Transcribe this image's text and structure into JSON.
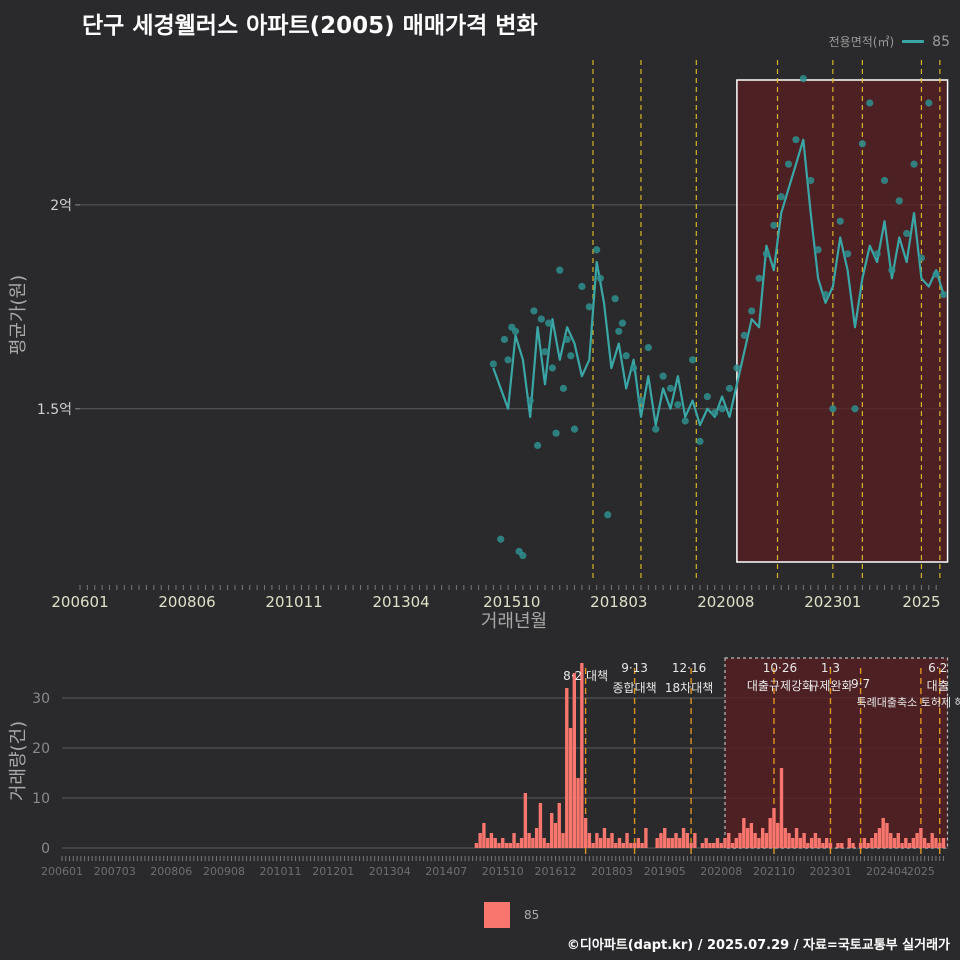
{
  "title": "단구 세경웰러스 아파트(2005) 매매가격 변화",
  "legend": {
    "title": "전용면적(㎡)",
    "item": "85"
  },
  "bottom_legend": {
    "item": "85"
  },
  "credit": "©디아파트(dapt.kr) / 2025.07.29 / 자료=국토교통부 실거래가",
  "colors": {
    "background": "#2a2a2c",
    "series_line": "#3aa6a6",
    "point": "#2f8f8f",
    "bar": "#f8766d",
    "highlight": "#5a1e22",
    "policy_line": "#e8c32a"
  },
  "chart_data": [
    {
      "type": "scatter",
      "title": "단구 세경웰러스 아파트(2005) 매매가격 변화",
      "xlabel": "거래년월",
      "ylabel": "평균가(원)",
      "x_ticks": [
        "200601",
        "200806",
        "201011",
        "201304",
        "201510",
        "201803",
        "202008",
        "202301",
        "2025"
      ],
      "y_ticks": [
        "1.5억",
        "2억"
      ],
      "ylim": [
        1.08,
        2.38
      ],
      "series_name": "85",
      "trend": [
        [
          "2015-05",
          1.6
        ],
        [
          "2015-07",
          1.55
        ],
        [
          "2015-09",
          1.5
        ],
        [
          "2015-11",
          1.68
        ],
        [
          "2016-01",
          1.62
        ],
        [
          "2016-03",
          1.48
        ],
        [
          "2016-05",
          1.7
        ],
        [
          "2016-07",
          1.56
        ],
        [
          "2016-09",
          1.72
        ],
        [
          "2016-11",
          1.62
        ],
        [
          "2017-01",
          1.7
        ],
        [
          "2017-03",
          1.66
        ],
        [
          "2017-05",
          1.58
        ],
        [
          "2017-07",
          1.62
        ],
        [
          "2017-09",
          1.86
        ],
        [
          "2017-11",
          1.76
        ],
        [
          "2018-01",
          1.6
        ],
        [
          "2018-03",
          1.66
        ],
        [
          "2018-05",
          1.55
        ],
        [
          "2018-07",
          1.62
        ],
        [
          "2018-09",
          1.48
        ],
        [
          "2018-11",
          1.58
        ],
        [
          "2019-01",
          1.46
        ],
        [
          "2019-03",
          1.55
        ],
        [
          "2019-05",
          1.5
        ],
        [
          "2019-07",
          1.58
        ],
        [
          "2019-09",
          1.48
        ],
        [
          "2019-11",
          1.52
        ],
        [
          "2020-01",
          1.46
        ],
        [
          "2020-03",
          1.5
        ],
        [
          "2020-05",
          1.48
        ],
        [
          "2020-07",
          1.53
        ],
        [
          "2020-09",
          1.48
        ],
        [
          "2020-11",
          1.56
        ],
        [
          "2021-01",
          1.64
        ],
        [
          "2021-03",
          1.72
        ],
        [
          "2021-05",
          1.7
        ],
        [
          "2021-07",
          1.9
        ],
        [
          "2021-09",
          1.84
        ],
        [
          "2021-11",
          1.98
        ],
        [
          "2022-01",
          2.04
        ],
        [
          "2022-03",
          2.1
        ],
        [
          "2022-05",
          2.16
        ],
        [
          "2022-07",
          1.98
        ],
        [
          "2022-09",
          1.82
        ],
        [
          "2022-11",
          1.76
        ],
        [
          "2023-01",
          1.8
        ],
        [
          "2023-03",
          1.92
        ],
        [
          "2023-05",
          1.84
        ],
        [
          "2023-07",
          1.7
        ],
        [
          "2023-09",
          1.82
        ],
        [
          "2023-11",
          1.9
        ],
        [
          "2024-01",
          1.86
        ],
        [
          "2024-03",
          1.96
        ],
        [
          "2024-05",
          1.82
        ],
        [
          "2024-07",
          1.92
        ],
        [
          "2024-09",
          1.86
        ],
        [
          "2024-11",
          1.98
        ],
        [
          "2025-01",
          1.82
        ],
        [
          "2025-03",
          1.8
        ],
        [
          "2025-05",
          1.84
        ],
        [
          "2025-07",
          1.78
        ]
      ],
      "points": [
        [
          "2015-05",
          1.61
        ],
        [
          "2015-07",
          1.18
        ],
        [
          "2015-08",
          1.67
        ],
        [
          "2015-09",
          1.62
        ],
        [
          "2015-10",
          1.7
        ],
        [
          "2015-11",
          1.69
        ],
        [
          "2015-12",
          1.15
        ],
        [
          "2016-01",
          1.14
        ],
        [
          "2016-03",
          1.52
        ],
        [
          "2016-04",
          1.74
        ],
        [
          "2016-05",
          1.41
        ],
        [
          "2016-06",
          1.72
        ],
        [
          "2016-07",
          1.64
        ],
        [
          "2016-08",
          1.71
        ],
        [
          "2016-09",
          1.6
        ],
        [
          "2016-10",
          1.44
        ],
        [
          "2016-11",
          1.84
        ],
        [
          "2016-12",
          1.55
        ],
        [
          "2017-01",
          1.67
        ],
        [
          "2017-02",
          1.63
        ],
        [
          "2017-03",
          1.45
        ],
        [
          "2017-05",
          1.8
        ],
        [
          "2017-07",
          1.75
        ],
        [
          "2017-09",
          1.89
        ],
        [
          "2017-10",
          1.82
        ],
        [
          "2017-12",
          1.24
        ],
        [
          "2018-02",
          1.77
        ],
        [
          "2018-03",
          1.69
        ],
        [
          "2018-04",
          1.71
        ],
        [
          "2018-05",
          1.63
        ],
        [
          "2018-07",
          1.6
        ],
        [
          "2018-09",
          1.52
        ],
        [
          "2018-11",
          1.65
        ],
        [
          "2019-01",
          1.45
        ],
        [
          "2019-03",
          1.58
        ],
        [
          "2019-05",
          1.55
        ],
        [
          "2019-07",
          1.51
        ],
        [
          "2019-09",
          1.47
        ],
        [
          "2019-11",
          1.62
        ],
        [
          "2020-01",
          1.42
        ],
        [
          "2020-03",
          1.53
        ],
        [
          "2020-05",
          1.49
        ],
        [
          "2020-07",
          1.5
        ],
        [
          "2020-09",
          1.55
        ],
        [
          "2020-11",
          1.6
        ],
        [
          "2021-01",
          1.68
        ],
        [
          "2021-03",
          1.74
        ],
        [
          "2021-05",
          1.82
        ],
        [
          "2021-07",
          1.88
        ],
        [
          "2021-09",
          1.95
        ],
        [
          "2021-11",
          2.02
        ],
        [
          "2022-01",
          2.1
        ],
        [
          "2022-03",
          2.16
        ],
        [
          "2022-05",
          2.31
        ],
        [
          "2022-07",
          2.06
        ],
        [
          "2022-09",
          1.89
        ],
        [
          "2022-11",
          1.78
        ],
        [
          "2023-01",
          1.5
        ],
        [
          "2023-03",
          1.96
        ],
        [
          "2023-05",
          1.88
        ],
        [
          "2023-07",
          1.5
        ],
        [
          "2023-09",
          2.15
        ],
        [
          "2023-11",
          2.25
        ],
        [
          "2024-01",
          1.88
        ],
        [
          "2024-03",
          2.06
        ],
        [
          "2024-05",
          1.84
        ],
        [
          "2024-07",
          2.01
        ],
        [
          "2024-09",
          1.93
        ],
        [
          "2024-11",
          2.1
        ],
        [
          "2025-01",
          1.87
        ],
        [
          "2025-03",
          2.25
        ],
        [
          "2025-05",
          1.83
        ],
        [
          "2025-07",
          1.78
        ]
      ],
      "highlight_period": [
        "2020-11",
        "2025-07"
      ],
      "policy_lines": [
        "2017-08",
        "2018-09",
        "2019-12",
        "2021-10",
        "2023-01",
        "2023-09",
        "2025-01",
        "2025-06"
      ]
    },
    {
      "type": "bar",
      "ylabel": "거래량(건)",
      "y_ticks": [
        0,
        10,
        20,
        30
      ],
      "ylim": [
        0,
        38
      ],
      "x_ticks": [
        "200601",
        "200703",
        "200806",
        "200908",
        "201011",
        "201201",
        "201304",
        "201407",
        "201510",
        "201612",
        "201803",
        "201905",
        "202008",
        "202110",
        "202301",
        "202404",
        "2025"
      ],
      "series_name": "85",
      "bars": [
        [
          "2015-03",
          1
        ],
        [
          "2015-04",
          3
        ],
        [
          "2015-05",
          5
        ],
        [
          "2015-06",
          2
        ],
        [
          "2015-07",
          3
        ],
        [
          "2015-08",
          2
        ],
        [
          "2015-09",
          1
        ],
        [
          "2015-10",
          2
        ],
        [
          "2015-11",
          1
        ],
        [
          "2015-12",
          1
        ],
        [
          "2016-01",
          3
        ],
        [
          "2016-02",
          1
        ],
        [
          "2016-03",
          2
        ],
        [
          "2016-04",
          11
        ],
        [
          "2016-05",
          3
        ],
        [
          "2016-06",
          2
        ],
        [
          "2016-07",
          4
        ],
        [
          "2016-08",
          9
        ],
        [
          "2016-09",
          2
        ],
        [
          "2016-10",
          1
        ],
        [
          "2016-11",
          7
        ],
        [
          "2016-12",
          5
        ],
        [
          "2017-01",
          9
        ],
        [
          "2017-02",
          3
        ],
        [
          "2017-03",
          32
        ],
        [
          "2017-04",
          24
        ],
        [
          "2017-05",
          35
        ],
        [
          "2017-06",
          14
        ],
        [
          "2017-07",
          37
        ],
        [
          "2017-08",
          6
        ],
        [
          "2017-09",
          3
        ],
        [
          "2017-10",
          1
        ],
        [
          "2017-11",
          3
        ],
        [
          "2017-12",
          2
        ],
        [
          "2018-01",
          4
        ],
        [
          "2018-02",
          2
        ],
        [
          "2018-03",
          3
        ],
        [
          "2018-04",
          1
        ],
        [
          "2018-05",
          2
        ],
        [
          "2018-06",
          1
        ],
        [
          "2018-07",
          3
        ],
        [
          "2018-08",
          1
        ],
        [
          "2018-09",
          1
        ],
        [
          "2018-10",
          2
        ],
        [
          "2018-11",
          1
        ],
        [
          "2018-12",
          4
        ],
        [
          "2019-03",
          2
        ],
        [
          "2019-04",
          3
        ],
        [
          "2019-05",
          4
        ],
        [
          "2019-06",
          2
        ],
        [
          "2019-07",
          2
        ],
        [
          "2019-08",
          3
        ],
        [
          "2019-09",
          2
        ],
        [
          "2019-10",
          4
        ],
        [
          "2019-11",
          3
        ],
        [
          "2019-12",
          1
        ],
        [
          "2020-01",
          3
        ],
        [
          "2020-03",
          1
        ],
        [
          "2020-04",
          2
        ],
        [
          "2020-05",
          1
        ],
        [
          "2020-06",
          1
        ],
        [
          "2020-07",
          2
        ],
        [
          "2020-08",
          1
        ],
        [
          "2020-09",
          2
        ],
        [
          "2020-10",
          3
        ],
        [
          "2020-11",
          1
        ],
        [
          "2020-12",
          2
        ],
        [
          "2021-01",
          3
        ],
        [
          "2021-02",
          6
        ],
        [
          "2021-03",
          4
        ],
        [
          "2021-04",
          5
        ],
        [
          "2021-05",
          3
        ],
        [
          "2021-06",
          2
        ],
        [
          "2021-07",
          4
        ],
        [
          "2021-08",
          3
        ],
        [
          "2021-09",
          6
        ],
        [
          "2021-10",
          8
        ],
        [
          "2021-11",
          5
        ],
        [
          "2021-12",
          16
        ],
        [
          "2022-01",
          4
        ],
        [
          "2022-02",
          3
        ],
        [
          "2022-03",
          2
        ],
        [
          "2022-04",
          4
        ],
        [
          "2022-05",
          2
        ],
        [
          "2022-06",
          3
        ],
        [
          "2022-07",
          1
        ],
        [
          "2022-08",
          2
        ],
        [
          "2022-09",
          3
        ],
        [
          "2022-10",
          2
        ],
        [
          "2022-11",
          1
        ],
        [
          "2022-12",
          2
        ],
        [
          "2023-01",
          1
        ],
        [
          "2023-03",
          1
        ],
        [
          "2023-04",
          1
        ],
        [
          "2023-06",
          2
        ],
        [
          "2023-07",
          1
        ],
        [
          "2023-09",
          1
        ],
        [
          "2023-10",
          2
        ],
        [
          "2023-11",
          1
        ],
        [
          "2023-12",
          2
        ],
        [
          "2024-01",
          3
        ],
        [
          "2024-02",
          4
        ],
        [
          "2024-03",
          6
        ],
        [
          "2024-04",
          5
        ],
        [
          "2024-05",
          3
        ],
        [
          "2024-06",
          2
        ],
        [
          "2024-07",
          3
        ],
        [
          "2024-08",
          1
        ],
        [
          "2024-09",
          2
        ],
        [
          "2024-10",
          1
        ],
        [
          "2024-11",
          2
        ],
        [
          "2024-12",
          3
        ],
        [
          "2025-01",
          4
        ],
        [
          "2025-02",
          2
        ],
        [
          "2025-03",
          1
        ],
        [
          "2025-04",
          3
        ],
        [
          "2025-05",
          2
        ],
        [
          "2025-06",
          1
        ],
        [
          "2025-07",
          2
        ]
      ],
      "highlight_period": [
        "2020-09",
        "2025-07"
      ],
      "policy_lines": [
        "2017-08",
        "2018-09",
        "2019-12",
        "2021-10",
        "2023-01",
        "2023-09",
        "2025-01",
        "2025-06"
      ],
      "annotations": [
        {
          "date": "2017-08",
          "line1": "8·2 대책",
          "line2": ""
        },
        {
          "date": "2018-09",
          "line1": "9·13",
          "line2": "종합대책"
        },
        {
          "date": "2019-12",
          "line1": "12·16",
          "line2": "18차대책"
        },
        {
          "date": "2021-10",
          "line1": "10·26",
          "line2": "대출규제강화"
        },
        {
          "date": "2023-01",
          "line1": "1·3",
          "line2": "규제완화"
        },
        {
          "date": "2023-09",
          "line1": "9·7",
          "line2": ""
        },
        {
          "date": "2023-09",
          "line1": "",
          "line2": "특례대출축소 토허제 해"
        },
        {
          "date": "2025-06",
          "line1": "6·2",
          "line2": "대출"
        }
      ]
    }
  ]
}
